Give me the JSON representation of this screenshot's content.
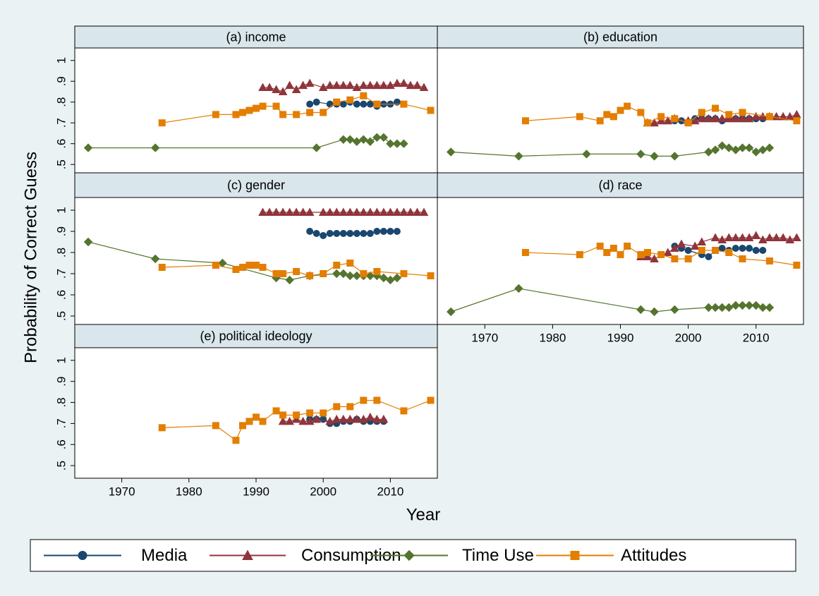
{
  "y_title": "Probability of Correct Guess",
  "x_title": "Year",
  "chart_data": [
    {
      "type": "line",
      "title": "(a) income",
      "xlim": [
        1963,
        2017
      ],
      "ylim": [
        0.46,
        1.06
      ],
      "yticks": [
        {
          "value": 0.5,
          "label": ".5"
        },
        {
          "value": 0.6,
          "label": ".6"
        },
        {
          "value": 0.7,
          "label": ".7"
        },
        {
          "value": 0.8,
          "label": ".8"
        },
        {
          "value": 0.9,
          "label": ".9"
        },
        1
      ],
      "series": [
        {
          "name": "Media",
          "color": "#1a476f",
          "marker": "circle",
          "x": [
            1998,
            1999,
            2001,
            2002,
            2003,
            2004,
            2005,
            2006,
            2007,
            2008,
            2009,
            2010,
            2011
          ],
          "values": [
            0.79,
            0.8,
            0.79,
            0.79,
            0.79,
            0.8,
            0.79,
            0.79,
            0.79,
            0.78,
            0.79,
            0.79,
            0.8
          ]
        },
        {
          "name": "Consumption",
          "color": "#90353b",
          "marker": "triangle",
          "x": [
            1991,
            1992,
            1993,
            1994,
            1995,
            1996,
            1997,
            1998,
            2000,
            2001,
            2002,
            2003,
            2004,
            2005,
            2006,
            2007,
            2008,
            2009,
            2010,
            2011,
            2012,
            2013,
            2014,
            2015
          ],
          "values": [
            0.87,
            0.87,
            0.86,
            0.85,
            0.88,
            0.86,
            0.88,
            0.89,
            0.87,
            0.88,
            0.88,
            0.88,
            0.88,
            0.87,
            0.88,
            0.88,
            0.88,
            0.88,
            0.88,
            0.89,
            0.89,
            0.88,
            0.88,
            0.87
          ]
        },
        {
          "name": "Time Use",
          "color": "#55752f",
          "marker": "diamond",
          "x": [
            1965,
            1975,
            1999,
            2003,
            2004,
            2005,
            2006,
            2007,
            2008,
            2009,
            2010,
            2011,
            2012
          ],
          "values": [
            0.58,
            0.58,
            0.58,
            0.62,
            0.62,
            0.61,
            0.62,
            0.61,
            0.63,
            0.63,
            0.6,
            0.6,
            0.6
          ]
        },
        {
          "name": "Attitudes",
          "color": "#e37e00",
          "marker": "square",
          "x": [
            1976,
            1984,
            1987,
            1988,
            1989,
            1990,
            1991,
            1993,
            1994,
            1996,
            1998,
            2000,
            2002,
            2004,
            2006,
            2008,
            2012,
            2016
          ],
          "values": [
            0.7,
            0.74,
            0.74,
            0.75,
            0.76,
            0.77,
            0.78,
            0.78,
            0.74,
            0.74,
            0.75,
            0.75,
            0.8,
            0.81,
            0.83,
            0.79,
            0.79,
            0.76
          ]
        }
      ]
    },
    {
      "type": "line",
      "title": "(b) education",
      "xlim": [
        1963,
        2017
      ],
      "ylim": [
        0.46,
        1.06
      ],
      "series": [
        {
          "name": "Media",
          "color": "#1a476f",
          "marker": "circle",
          "x": [
            1998,
            1999,
            2001,
            2002,
            2003,
            2004,
            2005,
            2006,
            2007,
            2008,
            2009,
            2010,
            2011
          ],
          "values": [
            0.71,
            0.71,
            0.72,
            0.72,
            0.72,
            0.72,
            0.71,
            0.72,
            0.72,
            0.72,
            0.72,
            0.72,
            0.72
          ]
        },
        {
          "name": "Consumption",
          "color": "#90353b",
          "marker": "triangle",
          "x": [
            1994,
            1995,
            1996,
            1997,
            1998,
            2000,
            2001,
            2002,
            2003,
            2004,
            2005,
            2006,
            2007,
            2008,
            2009,
            2010,
            2011,
            2012,
            2013,
            2014,
            2015,
            2016
          ],
          "values": [
            0.7,
            0.7,
            0.71,
            0.71,
            0.72,
            0.71,
            0.71,
            0.72,
            0.72,
            0.72,
            0.72,
            0.72,
            0.72,
            0.72,
            0.72,
            0.73,
            0.73,
            0.73,
            0.73,
            0.73,
            0.73,
            0.74
          ]
        },
        {
          "name": "Time Use",
          "color": "#55752f",
          "marker": "diamond",
          "x": [
            1965,
            1975,
            1985,
            1993,
            1995,
            1998,
            2003,
            2004,
            2005,
            2006,
            2007,
            2008,
            2009,
            2010,
            2011,
            2012
          ],
          "values": [
            0.56,
            0.54,
            0.55,
            0.55,
            0.54,
            0.54,
            0.56,
            0.57,
            0.59,
            0.58,
            0.57,
            0.58,
            0.58,
            0.56,
            0.57,
            0.58
          ]
        },
        {
          "name": "Attitudes",
          "color": "#e37e00",
          "marker": "square",
          "x": [
            1976,
            1984,
            1987,
            1988,
            1989,
            1990,
            1991,
            1993,
            1994,
            1996,
            1998,
            2000,
            2002,
            2004,
            2006,
            2008,
            2012,
            2016
          ],
          "values": [
            0.71,
            0.73,
            0.71,
            0.74,
            0.73,
            0.76,
            0.78,
            0.75,
            0.7,
            0.73,
            0.72,
            0.7,
            0.75,
            0.77,
            0.74,
            0.75,
            0.73,
            0.71
          ]
        }
      ]
    },
    {
      "type": "line",
      "title": "(c) gender",
      "xlim": [
        1963,
        2017
      ],
      "ylim": [
        0.46,
        1.06
      ],
      "yticks": [
        {
          "value": 0.5,
          "label": ".5"
        },
        {
          "value": 0.6,
          "label": ".6"
        },
        {
          "value": 0.7,
          "label": ".7"
        },
        {
          "value": 0.8,
          "label": ".8"
        },
        {
          "value": 0.9,
          "label": ".9"
        },
        1
      ],
      "series": [
        {
          "name": "Media",
          "color": "#1a476f",
          "marker": "circle",
          "x": [
            1998,
            1999,
            2000,
            2001,
            2002,
            2003,
            2004,
            2005,
            2006,
            2007,
            2008,
            2009,
            2010,
            2011
          ],
          "values": [
            0.9,
            0.89,
            0.88,
            0.89,
            0.89,
            0.89,
            0.89,
            0.89,
            0.89,
            0.89,
            0.9,
            0.9,
            0.9,
            0.9
          ]
        },
        {
          "name": "Consumption",
          "color": "#90353b",
          "marker": "triangle",
          "x": [
            1991,
            1992,
            1993,
            1994,
            1995,
            1996,
            1997,
            1998,
            2000,
            2001,
            2002,
            2003,
            2004,
            2005,
            2006,
            2007,
            2008,
            2009,
            2010,
            2011,
            2012,
            2013,
            2014,
            2015
          ],
          "values": [
            0.99,
            0.99,
            0.99,
            0.99,
            0.99,
            0.99,
            0.99,
            0.99,
            0.99,
            0.99,
            0.99,
            0.99,
            0.99,
            0.99,
            0.99,
            0.99,
            0.99,
            0.99,
            0.99,
            0.99,
            0.99,
            0.99,
            0.99,
            0.99
          ]
        },
        {
          "name": "Time Use",
          "color": "#55752f",
          "marker": "diamond",
          "x": [
            1965,
            1975,
            1985,
            1993,
            1995,
            1998,
            2002,
            2003,
            2004,
            2005,
            2006,
            2007,
            2008,
            2009,
            2010,
            2011
          ],
          "values": [
            0.85,
            0.77,
            0.75,
            0.68,
            0.67,
            0.69,
            0.7,
            0.7,
            0.69,
            0.69,
            0.69,
            0.69,
            0.69,
            0.68,
            0.67,
            0.68
          ]
        },
        {
          "name": "Attitudes",
          "color": "#e37e00",
          "marker": "square",
          "x": [
            1976,
            1984,
            1987,
            1988,
            1989,
            1990,
            1991,
            1993,
            1994,
            1996,
            1998,
            2000,
            2002,
            2004,
            2006,
            2008,
            2012,
            2016
          ],
          "values": [
            0.73,
            0.74,
            0.72,
            0.73,
            0.74,
            0.74,
            0.73,
            0.7,
            0.7,
            0.71,
            0.69,
            0.7,
            0.74,
            0.75,
            0.7,
            0.71,
            0.7,
            0.69
          ]
        }
      ]
    },
    {
      "type": "line",
      "title": "(d) race",
      "xlim": [
        1963,
        2017
      ],
      "ylim": [
        0.46,
        1.06
      ],
      "xticks": [
        1970,
        1980,
        1990,
        2000,
        2010
      ],
      "series": [
        {
          "name": "Media",
          "color": "#1a476f",
          "marker": "circle",
          "x": [
            1998,
            1999,
            2000,
            2002,
            2003,
            2004,
            2005,
            2006,
            2007,
            2008,
            2009,
            2010,
            2011
          ],
          "values": [
            0.83,
            0.82,
            0.81,
            0.79,
            0.78,
            0.81,
            0.82,
            0.81,
            0.82,
            0.82,
            0.82,
            0.81,
            0.81
          ]
        },
        {
          "name": "Consumption",
          "color": "#90353b",
          "marker": "triangle",
          "x": [
            1993,
            1994,
            1995,
            1997,
            1998,
            1999,
            2001,
            2002,
            2004,
            2005,
            2006,
            2007,
            2008,
            2009,
            2010,
            2011,
            2012,
            2013,
            2014,
            2015,
            2016
          ],
          "values": [
            0.78,
            0.78,
            0.77,
            0.8,
            0.82,
            0.84,
            0.83,
            0.85,
            0.87,
            0.86,
            0.87,
            0.87,
            0.87,
            0.87,
            0.88,
            0.86,
            0.87,
            0.87,
            0.87,
            0.86,
            0.87
          ]
        },
        {
          "name": "Time Use",
          "color": "#55752f",
          "marker": "diamond",
          "x": [
            1965,
            1975,
            1993,
            1995,
            1998,
            2003,
            2004,
            2005,
            2006,
            2007,
            2008,
            2009,
            2010,
            2011,
            2012
          ],
          "values": [
            0.52,
            0.63,
            0.53,
            0.52,
            0.53,
            0.54,
            0.54,
            0.54,
            0.54,
            0.55,
            0.55,
            0.55,
            0.55,
            0.54,
            0.54
          ]
        },
        {
          "name": "Attitudes",
          "color": "#e37e00",
          "marker": "square",
          "x": [
            1976,
            1984,
            1987,
            1988,
            1989,
            1990,
            1991,
            1993,
            1994,
            1996,
            1998,
            2000,
            2002,
            2004,
            2006,
            2008,
            2012,
            2016
          ],
          "values": [
            0.8,
            0.79,
            0.83,
            0.8,
            0.82,
            0.79,
            0.83,
            0.79,
            0.8,
            0.79,
            0.77,
            0.77,
            0.81,
            0.81,
            0.8,
            0.77,
            0.76,
            0.74
          ]
        }
      ]
    },
    {
      "type": "line",
      "title": "(e) political ideology",
      "xlim": [
        1963,
        2017
      ],
      "ylim": [
        0.44,
        1.06
      ],
      "yticks": [
        {
          "value": 0.5,
          "label": ".5"
        },
        {
          "value": 0.6,
          "label": ".6"
        },
        {
          "value": 0.7,
          "label": ".7"
        },
        {
          "value": 0.8,
          "label": ".8"
        },
        {
          "value": 0.9,
          "label": ".9"
        },
        1
      ],
      "xticks": [
        1970,
        1980,
        1990,
        2000,
        2010
      ],
      "series": [
        {
          "name": "Media",
          "color": "#1a476f",
          "marker": "circle",
          "x": [
            1998,
            1999,
            2000,
            2001,
            2002,
            2003,
            2004,
            2005,
            2006,
            2007,
            2008,
            2009
          ],
          "values": [
            0.72,
            0.72,
            0.72,
            0.7,
            0.7,
            0.71,
            0.71,
            0.72,
            0.71,
            0.71,
            0.71,
            0.71
          ]
        },
        {
          "name": "Consumption",
          "color": "#90353b",
          "marker": "triangle",
          "x": [
            1994,
            1995,
            1996,
            1997,
            1998,
            1999,
            2001,
            2002,
            2003,
            2004,
            2005,
            2006,
            2007,
            2008,
            2009
          ],
          "values": [
            0.71,
            0.71,
            0.72,
            0.71,
            0.71,
            0.72,
            0.71,
            0.72,
            0.72,
            0.72,
            0.72,
            0.72,
            0.73,
            0.72,
            0.72
          ]
        },
        {
          "name": "Attitudes",
          "color": "#e37e00",
          "marker": "square",
          "x": [
            1976,
            1984,
            1987,
            1988,
            1989,
            1990,
            1991,
            1993,
            1994,
            1996,
            1998,
            2000,
            2002,
            2004,
            2006,
            2008,
            2012,
            2016
          ],
          "values": [
            0.68,
            0.69,
            0.62,
            0.69,
            0.71,
            0.73,
            0.71,
            0.76,
            0.74,
            0.74,
            0.75,
            0.75,
            0.78,
            0.78,
            0.81,
            0.81,
            0.76,
            0.81
          ]
        }
      ]
    }
  ]
}
